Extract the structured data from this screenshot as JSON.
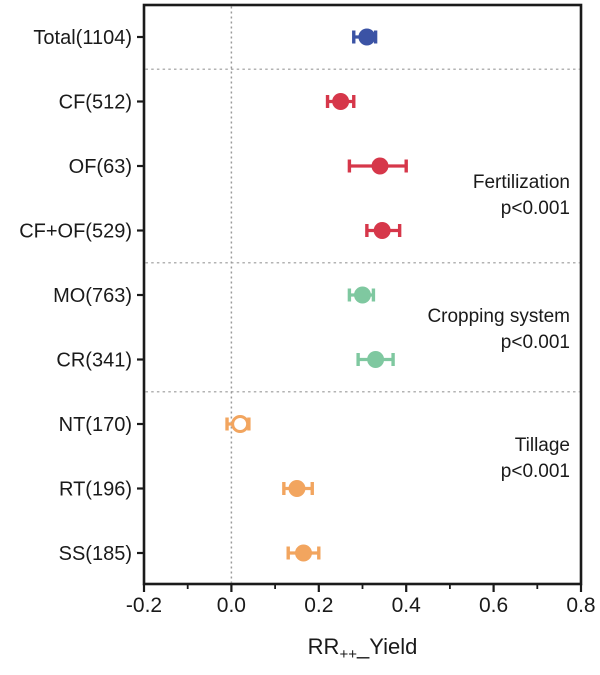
{
  "chart_data": {
    "type": "scatter",
    "subtype": "forest-plot",
    "title": "",
    "xlabel_base": "RR",
    "xlabel_sub": "++",
    "xlabel_rest": "_Yield",
    "xlim": [
      -0.2,
      0.8
    ],
    "xticks": [
      -0.2,
      0.0,
      0.2,
      0.4,
      0.6,
      0.8
    ],
    "xtick_labels": [
      "-0.2",
      "0.0",
      "0.2",
      "0.4",
      "0.6",
      "0.8"
    ],
    "minor_xtick_step": 0.1,
    "zero_line_x": 0.0,
    "grid": false,
    "legend_position": "none",
    "points": [
      {
        "label": "Total(1104)",
        "value": 0.31,
        "ci": [
          0.28,
          0.33
        ],
        "color": "#3B53A5",
        "filled": true,
        "group": "Total"
      },
      {
        "label": "CF(512)",
        "value": 0.25,
        "ci": [
          0.22,
          0.28
        ],
        "color": "#D6374A",
        "filled": true,
        "group": "Fertilization"
      },
      {
        "label": "OF(63)",
        "value": 0.34,
        "ci": [
          0.27,
          0.4
        ],
        "color": "#D6374A",
        "filled": true,
        "group": "Fertilization"
      },
      {
        "label": "CF+OF(529)",
        "value": 0.345,
        "ci": [
          0.31,
          0.385
        ],
        "color": "#D6374A",
        "filled": true,
        "group": "Fertilization"
      },
      {
        "label": "MO(763)",
        "value": 0.3,
        "ci": [
          0.27,
          0.325
        ],
        "color": "#7FC8A0",
        "filled": true,
        "group": "Cropping system"
      },
      {
        "label": "CR(341)",
        "value": 0.33,
        "ci": [
          0.29,
          0.37
        ],
        "color": "#7FC8A0",
        "filled": true,
        "group": "Cropping system"
      },
      {
        "label": "NT(170)",
        "value": 0.02,
        "ci": [
          -0.01,
          0.04
        ],
        "color": "#F2A55F",
        "filled": false,
        "group": "Tillage"
      },
      {
        "label": "RT(196)",
        "value": 0.15,
        "ci": [
          0.12,
          0.185
        ],
        "color": "#F2A55F",
        "filled": true,
        "group": "Tillage"
      },
      {
        "label": "SS(185)",
        "value": 0.165,
        "ci": [
          0.13,
          0.2
        ],
        "color": "#F2A55F",
        "filled": true,
        "group": "Tillage"
      }
    ],
    "separators_after_rows": [
      0,
      3,
      5
    ],
    "annotations": [
      {
        "label": "Fertilization",
        "p": "p<0.001"
      },
      {
        "label": "Cropping system",
        "p": "p<0.001"
      },
      {
        "label": "Tillage",
        "p": "p<0.001"
      }
    ],
    "colors": {
      "axis": "#1a1a1a",
      "separator": "#b3b3b3",
      "zero_line": "#999999",
      "background": "#ffffff",
      "text": "#1a1a1a"
    }
  }
}
